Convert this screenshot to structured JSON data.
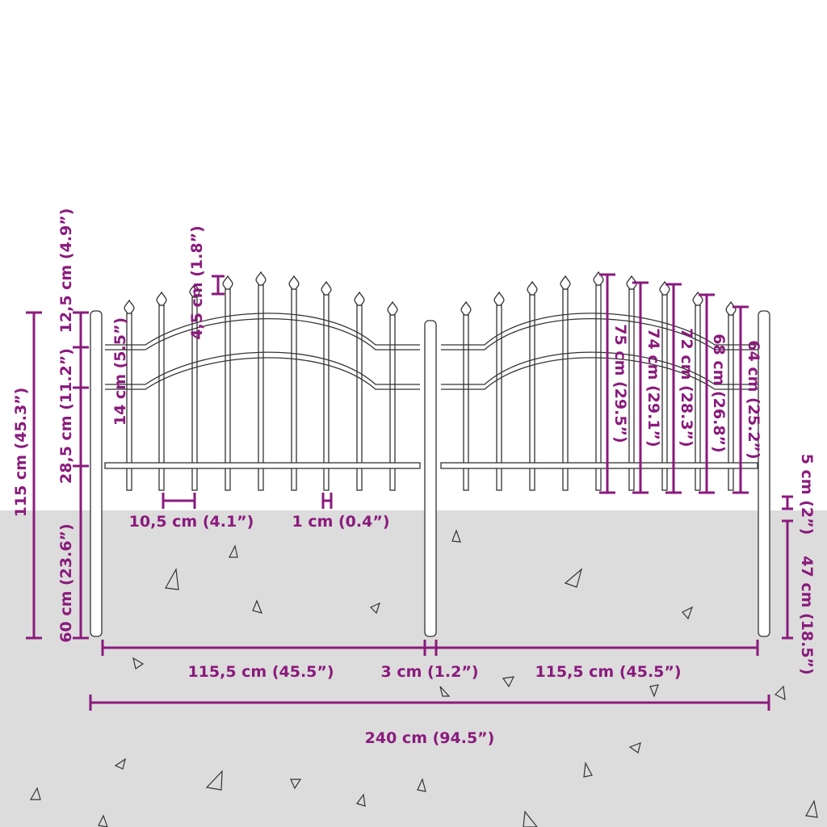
{
  "colors": {
    "dimension": "#8a1a7c",
    "ground": "#dcdcdc",
    "outline": "#333333"
  },
  "dimensions": {
    "total_height": "115 cm (45.3”)",
    "top_section": "12,5 cm (4.9”)",
    "rail_to_base": "28,5 cm (11.2”)",
    "in_ground": "60 cm (23.6”)",
    "rail_gap": "14 cm (5.5”)",
    "spear_height": "4,5 cm (1.8”)",
    "picket_spacing": "10,5 cm (4.1”)",
    "picket_width": "1 cm (0.4”)",
    "panel_width_left": "115,5 cm (45.5”)",
    "post_width": "3 cm (1.2”)",
    "panel_width_right": "115,5 cm (45.5”)",
    "total_width": "240 cm (94.5”)",
    "picket_heights": [
      "75 cm (29.5”)",
      "74 cm (29.1”)",
      "72 cm (28.3”)",
      "68 cm (26.8”)",
      "64 cm (25.2”)"
    ],
    "ground_clearance": "5 cm (2”)",
    "post_in_ground": "47 cm (18.5”)"
  }
}
